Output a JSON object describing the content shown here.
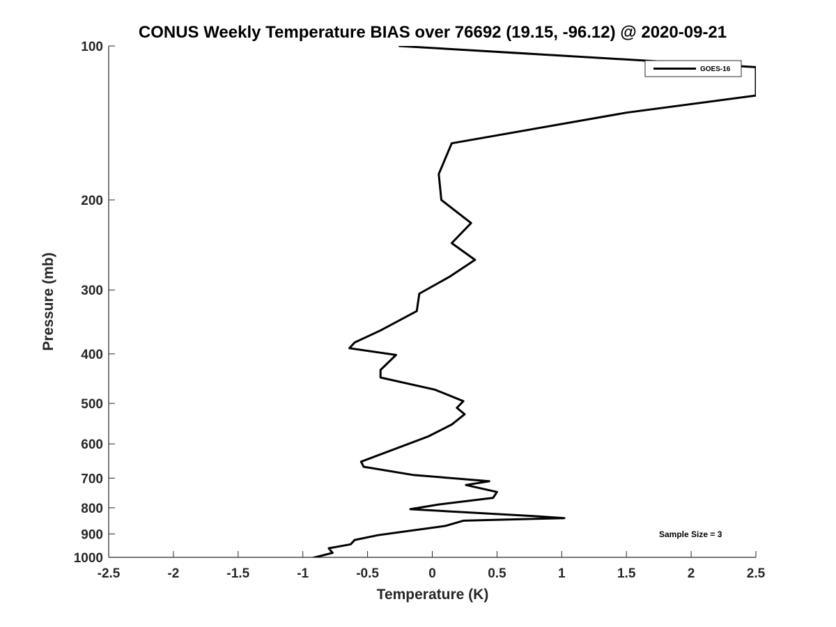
{
  "chart_data": {
    "type": "line",
    "title": "CONUS Weekly Temperature BIAS over 76692 (19.15, -96.12) @ 2020-09-21",
    "xlabel": "Temperature (K)",
    "ylabel": "Pressure (mb)",
    "xlim": [
      -2.5,
      2.5
    ],
    "ylim": [
      1000,
      100
    ],
    "yscale": "log",
    "xticks": [
      -2.5,
      -2,
      -1.5,
      -1,
      -0.5,
      0,
      0.5,
      1,
      1.5,
      2,
      2.5
    ],
    "xtick_labels": [
      "-2.5",
      "-2",
      "-1.5",
      "-1",
      "-0.5",
      "0",
      "0.5",
      "1",
      "1.5",
      "2",
      "2.5"
    ],
    "yticks": [
      100,
      200,
      300,
      400,
      500,
      600,
      700,
      800,
      900,
      1000
    ],
    "ytick_labels": [
      "100",
      "200",
      "300",
      "400",
      "500",
      "600",
      "700",
      "800",
      "900",
      "1000"
    ],
    "grid": false,
    "legend_position": "top-right",
    "annotation": "Sample Size = 3",
    "colors": {
      "line": "#000000",
      "axis": "#262626"
    },
    "series": [
      {
        "name": "GOES-16",
        "x": [
          -0.26,
          2.5,
          2.5,
          1.5,
          0.15,
          0.05,
          0.07,
          0.3,
          0.15,
          0.33,
          0.13,
          -0.1,
          -0.12,
          -0.4,
          -0.6,
          -0.64,
          -0.28,
          -0.4,
          -0.4,
          0.02,
          0.24,
          0.19,
          0.25,
          0.15,
          -0.03,
          -0.55,
          -0.53,
          -0.15,
          0.44,
          0.26,
          0.5,
          0.47,
          0.05,
          -0.17,
          0.77,
          1.02,
          0.24,
          0.1,
          -0.42,
          -0.6,
          -0.63,
          -0.8,
          -0.77,
          -0.94
        ],
        "y": [
          100,
          110,
          125,
          135,
          155,
          178,
          200,
          222,
          243,
          262,
          283,
          305,
          330,
          360,
          380,
          390,
          402,
          430,
          445,
          470,
          495,
          510,
          525,
          550,
          580,
          650,
          665,
          690,
          710,
          722,
          745,
          765,
          788,
          805,
          830,
          838,
          848,
          868,
          905,
          925,
          943,
          960,
          980,
          1005
        ]
      }
    ]
  }
}
